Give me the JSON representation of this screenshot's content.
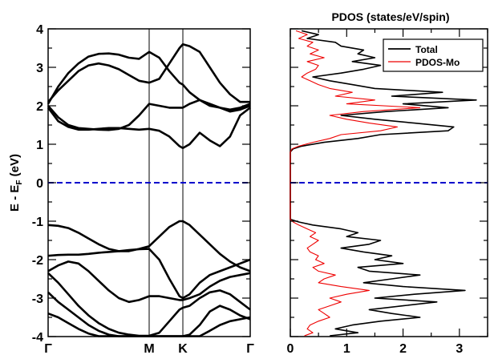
{
  "chart_data": [
    {
      "type": "line",
      "title": "",
      "ylabel_main": "E - E",
      "ylabel_sub": "F",
      "ylabel_unit": " (eV)",
      "ylim": [
        -4,
        4
      ],
      "y_ticks": [
        "-4",
        "-3",
        "-2",
        "-1",
        "0",
        "1",
        "2",
        "3",
        "4"
      ],
      "k_points": [
        {
          "label": "Γ",
          "x": 0
        },
        {
          "label": "M",
          "x": 0.5
        },
        {
          "label": "K",
          "x": 0.6667
        },
        {
          "label": "Γ",
          "x": 1.0
        }
      ],
      "fermi_level": 0,
      "colors": {
        "bands": "#000000",
        "fermi": "#0000cc"
      },
      "series": [
        {
          "x": [
            0,
            0.05,
            0.1,
            0.15,
            0.2,
            0.25,
            0.3,
            0.35,
            0.4,
            0.45,
            0.5,
            0.55,
            0.6,
            0.65,
            0.6667,
            0.7,
            0.75,
            0.8,
            0.85,
            0.9,
            0.95,
            1.0
          ],
          "y": [
            2.05,
            2.5,
            2.85,
            3.1,
            3.28,
            3.35,
            3.36,
            3.33,
            3.25,
            3.22,
            3.4,
            3.25,
            2.9,
            2.6,
            2.55,
            2.35,
            2.15,
            2.0,
            1.95,
            1.9,
            1.95,
            2.05
          ]
        },
        {
          "x": [
            0,
            0.05,
            0.1,
            0.15,
            0.2,
            0.25,
            0.3,
            0.35,
            0.4,
            0.45,
            0.5,
            0.55,
            0.6,
            0.65,
            0.6667,
            0.7,
            0.75,
            0.8,
            0.85,
            0.9,
            0.95,
            1.0
          ],
          "y": [
            2.1,
            2.4,
            2.65,
            2.9,
            3.05,
            3.1,
            3.05,
            2.95,
            2.8,
            2.65,
            2.6,
            2.7,
            3.1,
            3.5,
            3.6,
            3.55,
            3.4,
            3.0,
            2.6,
            2.3,
            2.1,
            2.1
          ]
        },
        {
          "x": [
            0,
            0.05,
            0.1,
            0.15,
            0.2,
            0.25,
            0.3,
            0.35,
            0.4,
            0.45,
            0.5,
            0.55,
            0.6,
            0.65,
            0.6667,
            0.7,
            0.75,
            0.8,
            0.85,
            0.9,
            0.95,
            1.0
          ],
          "y": [
            2.0,
            1.7,
            1.5,
            1.42,
            1.4,
            1.38,
            1.37,
            1.4,
            1.5,
            1.75,
            2.05,
            2.0,
            1.95,
            1.95,
            1.95,
            2.05,
            2.15,
            2.05,
            1.95,
            1.85,
            1.9,
            2.0
          ]
        },
        {
          "x": [
            0,
            0.05,
            0.1,
            0.15,
            0.2,
            0.25,
            0.3,
            0.35,
            0.4,
            0.45,
            0.5,
            0.55,
            0.6,
            0.65,
            0.6667,
            0.7,
            0.75,
            0.8,
            0.85,
            0.9,
            0.95,
            1.0
          ],
          "y": [
            1.95,
            1.6,
            1.45,
            1.38,
            1.38,
            1.4,
            1.42,
            1.42,
            1.4,
            1.38,
            1.4,
            1.35,
            1.2,
            0.95,
            0.9,
            1.0,
            1.3,
            1.1,
            0.95,
            1.2,
            1.75,
            1.95
          ]
        },
        {
          "x": [
            0,
            0.05,
            0.1,
            0.15,
            0.2,
            0.25,
            0.3,
            0.35,
            0.4,
            0.45,
            0.5,
            0.55,
            0.6,
            0.65,
            0.6667,
            0.7,
            0.75,
            0.8,
            0.85,
            0.9,
            0.95,
            1.0
          ],
          "y": [
            -1.1,
            -1.12,
            -1.18,
            -1.3,
            -1.45,
            -1.6,
            -1.72,
            -1.78,
            -1.78,
            -1.72,
            -1.65,
            -1.4,
            -1.15,
            -1.0,
            -1.0,
            -1.1,
            -1.35,
            -1.6,
            -1.85,
            -2.05,
            -2.2,
            -2.3
          ]
        },
        {
          "x": [
            0,
            0.05,
            0.1,
            0.15,
            0.2,
            0.25,
            0.3,
            0.35,
            0.4,
            0.45,
            0.5,
            0.55,
            0.6,
            0.65,
            0.6667,
            0.7,
            0.75,
            0.8,
            0.85,
            0.9,
            0.95,
            1.0
          ],
          "y": [
            -1.9,
            -1.88,
            -1.87,
            -1.87,
            -1.85,
            -1.82,
            -1.8,
            -1.78,
            -1.75,
            -1.73,
            -1.72,
            -2.0,
            -2.5,
            -2.95,
            -3.0,
            -2.9,
            -2.6,
            -2.4,
            -2.3,
            -2.2,
            -2.1,
            -2.0
          ]
        },
        {
          "x": [
            0,
            0.05,
            0.1,
            0.15,
            0.2,
            0.25,
            0.3,
            0.35,
            0.4,
            0.45,
            0.5,
            0.55,
            0.6,
            0.65,
            0.6667,
            0.7,
            0.75,
            0.8,
            0.85,
            0.9,
            0.95,
            1.0
          ],
          "y": [
            -2.3,
            -2.15,
            -2.05,
            -2.1,
            -2.3,
            -2.55,
            -2.8,
            -3.0,
            -3.1,
            -3.05,
            -2.95,
            -2.95,
            -3.0,
            -3.05,
            -3.05,
            -3.0,
            -2.9,
            -2.7,
            -2.55,
            -2.45,
            -2.4,
            -2.35
          ]
        },
        {
          "x": [
            0,
            0.05,
            0.1,
            0.15,
            0.2,
            0.25,
            0.3,
            0.35,
            0.4,
            0.45,
            0.5,
            0.55,
            0.6,
            0.65,
            0.6667,
            0.7,
            0.75,
            0.8,
            0.85,
            0.9,
            0.95,
            1.0
          ],
          "y": [
            -2.35,
            -2.6,
            -2.9,
            -3.2,
            -3.45,
            -3.65,
            -3.8,
            -3.9,
            -3.95,
            -3.98,
            -3.98,
            -3.9,
            -3.6,
            -3.3,
            -3.25,
            -3.2,
            -3.0,
            -2.85,
            -2.8,
            -2.9,
            -3.1,
            -3.3
          ]
        },
        {
          "x": [
            0,
            0.05,
            0.1,
            0.15,
            0.2,
            0.25,
            0.3,
            0.35,
            0.4,
            0.45,
            0.5,
            0.55,
            0.6,
            0.65,
            0.6667,
            0.7,
            0.75,
            0.8,
            0.85,
            0.9,
            0.95,
            1.0
          ],
          "y": [
            -2.85,
            -3.1,
            -3.3,
            -3.5,
            -3.7,
            -3.85,
            -3.95,
            -3.99,
            -3.99,
            -3.99,
            -3.99,
            -3.99,
            -3.99,
            -3.99,
            -3.99,
            -3.95,
            -3.7,
            -3.35,
            -3.2,
            -3.3,
            -3.45,
            -3.55
          ]
        },
        {
          "x": [
            0,
            0.05,
            0.1,
            0.15,
            0.2,
            0.25,
            0.3,
            0.35,
            0.4,
            0.45,
            0.5,
            0.55,
            0.6,
            0.65,
            0.6667,
            0.7,
            0.75,
            0.8,
            0.85,
            0.9,
            0.95,
            1.0
          ],
          "y": [
            -3.4,
            -3.5,
            -3.65,
            -3.8,
            -3.92,
            -3.99,
            -3.99,
            -3.99,
            -3.99,
            -3.99,
            -3.99,
            -3.99,
            -3.99,
            -3.99,
            -3.99,
            -3.99,
            -3.99,
            -3.85,
            -3.7,
            -3.6,
            -3.55,
            -3.5
          ]
        }
      ]
    },
    {
      "type": "line",
      "title": "PDOS (states/eV/spin)",
      "xlim": [
        0,
        3.5
      ],
      "ylim": [
        -4,
        4
      ],
      "x_ticks": [
        "0",
        "1",
        "2",
        "3"
      ],
      "legend_position": "top-right",
      "fermi_level": 0,
      "colors": {
        "Total": "#000000",
        "PDOS-Mo": "#ee0000",
        "fermi": "#0000cc"
      },
      "series": [
        {
          "name": "Total",
          "y": [
            3.95,
            3.85,
            3.75,
            3.65,
            3.55,
            3.45,
            3.35,
            3.25,
            3.15,
            3.05,
            2.95,
            2.85,
            2.75,
            2.65,
            2.55,
            2.45,
            2.35,
            2.25,
            2.15,
            2.05,
            1.95,
            1.85,
            1.75,
            1.65,
            1.55,
            1.45,
            1.35,
            1.25,
            1.15,
            1.05,
            0.95,
            0.88,
            0.8,
            0.5,
            0.0,
            -0.5,
            -0.95,
            -1.02,
            -1.1,
            -1.2,
            -1.3,
            -1.4,
            -1.5,
            -1.6,
            -1.7,
            -1.8,
            -1.9,
            -2.0,
            -2.1,
            -2.2,
            -2.3,
            -2.4,
            -2.5,
            -2.6,
            -2.7,
            -2.8,
            -2.9,
            -3.0,
            -3.1,
            -3.2,
            -3.3,
            -3.4,
            -3.5,
            -3.6,
            -3.7,
            -3.8,
            -3.9,
            -3.98
          ],
          "x": [
            0.2,
            0.5,
            0.3,
            0.8,
            0.9,
            1.3,
            1.2,
            1.5,
            1.1,
            1.6,
            1.3,
            0.9,
            0.4,
            0.7,
            1.1,
            1.5,
            2.7,
            1.8,
            3.3,
            2.0,
            2.8,
            1.7,
            0.9,
            1.5,
            2.2,
            2.9,
            2.8,
            1.6,
            1.2,
            0.6,
            0.2,
            0.05,
            0.0,
            0.0,
            0.0,
            0.0,
            0.0,
            0.15,
            0.4,
            0.9,
            1.2,
            1.0,
            1.6,
            1.4,
            0.9,
            1.3,
            1.8,
            1.5,
            2.0,
            1.2,
            1.4,
            2.3,
            1.8,
            1.3,
            2.0,
            3.1,
            2.2,
            1.5,
            2.6,
            2.0,
            1.4,
            1.8,
            2.3,
            1.6,
            1.1,
            0.8,
            1.2,
            0.7
          ]
        },
        {
          "name": "PDOS-Mo",
          "y": [
            3.95,
            3.85,
            3.75,
            3.65,
            3.55,
            3.45,
            3.35,
            3.25,
            3.15,
            3.05,
            2.95,
            2.85,
            2.75,
            2.65,
            2.55,
            2.45,
            2.35,
            2.25,
            2.15,
            2.05,
            1.95,
            1.85,
            1.75,
            1.65,
            1.55,
            1.45,
            1.35,
            1.25,
            1.15,
            1.05,
            0.95,
            0.88,
            0.8,
            0.5,
            0.0,
            -0.5,
            -0.95,
            -1.02,
            -1.1,
            -1.2,
            -1.3,
            -1.4,
            -1.5,
            -1.6,
            -1.7,
            -1.8,
            -1.9,
            -2.0,
            -2.1,
            -2.2,
            -2.3,
            -2.4,
            -2.5,
            -2.6,
            -2.7,
            -2.8,
            -2.9,
            -3.0,
            -3.1,
            -3.2,
            -3.3,
            -3.4,
            -3.5,
            -3.6,
            -3.7,
            -3.8,
            -3.9,
            -3.98
          ],
          "x": [
            0.1,
            0.3,
            0.15,
            0.4,
            0.3,
            0.5,
            0.35,
            0.6,
            0.3,
            0.5,
            0.45,
            0.3,
            0.2,
            0.35,
            0.5,
            0.7,
            1.1,
            0.8,
            1.5,
            1.0,
            2.3,
            1.3,
            0.7,
            1.0,
            1.4,
            1.9,
            1.6,
            0.9,
            0.7,
            0.4,
            0.15,
            0.03,
            0.0,
            0.0,
            0.0,
            0.0,
            0.0,
            0.05,
            0.15,
            0.3,
            0.45,
            0.35,
            0.5,
            0.4,
            0.3,
            0.35,
            0.5,
            0.45,
            0.6,
            0.4,
            0.5,
            0.8,
            0.6,
            0.5,
            0.9,
            1.4,
            1.0,
            0.7,
            0.9,
            0.7,
            0.5,
            0.6,
            0.7,
            0.5,
            0.35,
            0.3,
            0.4,
            0.25
          ]
        }
      ]
    }
  ]
}
